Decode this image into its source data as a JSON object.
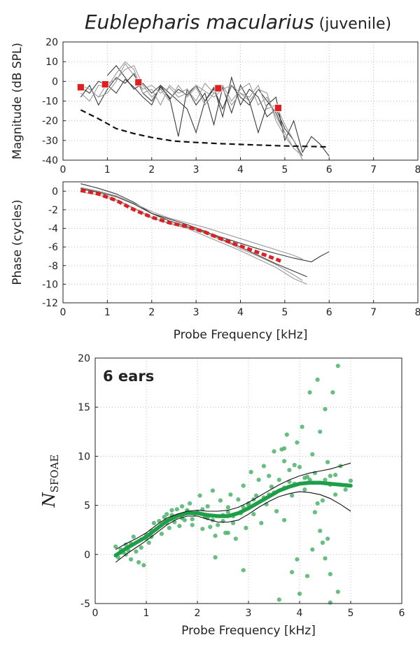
{
  "figure": {
    "title_species": "Eublepharis macularius",
    "title_suffix": " (juvenile)"
  },
  "colors": {
    "curve_dark": "#3a3a3a",
    "curve_light": "#9a9a9a",
    "phase_fit": "#e02020",
    "marker": "#e02020",
    "points": "#4db36b",
    "fit_line": "#1f9e49",
    "ci_line": "#111111",
    "grid": "#bdbdbd"
  },
  "chart_data": [
    {
      "id": "magnitude",
      "type": "line",
      "ylabel": "Magnitude (dB SPL)",
      "xlim": [
        0,
        8
      ],
      "ylim": [
        -40,
        20
      ],
      "xticks": [
        0,
        1,
        2,
        3,
        4,
        5,
        6,
        7,
        8
      ],
      "yticks": [
        -40,
        -30,
        -20,
        -10,
        0,
        10,
        20
      ],
      "grid": true,
      "series": [
        {
          "style": "dark",
          "x": [
            0.4,
            0.6,
            0.8,
            1.0,
            1.2,
            1.4,
            1.6,
            1.8,
            2.0,
            2.2,
            2.4,
            2.6,
            2.8,
            3.0,
            3.2,
            3.4,
            3.6,
            3.8,
            4.0,
            4.2,
            4.4,
            4.6,
            4.8,
            5.0,
            5.2,
            5.4,
            5.6,
            5.8,
            6.0
          ],
          "y": [
            -8,
            -2,
            -12,
            -4,
            2,
            -1,
            4,
            -6,
            -10,
            -3,
            -8,
            -28,
            -4,
            -12,
            -6,
            -22,
            -3,
            -16,
            -2,
            -10,
            -26,
            -12,
            -8,
            -30,
            -20,
            -36,
            -28,
            -32,
            -38
          ]
        },
        {
          "style": "dark",
          "x": [
            0.4,
            0.6,
            0.8,
            1.0,
            1.2,
            1.4,
            1.6,
            1.8,
            2.0,
            2.2,
            2.4,
            2.6,
            2.8,
            3.0,
            3.2,
            3.4,
            3.6,
            3.8,
            4.0,
            4.2,
            4.4,
            4.6,
            4.8,
            5.0,
            5.2,
            5.4
          ],
          "y": [
            -3,
            -6,
            0,
            -2,
            -6,
            1,
            -3,
            -8,
            -12,
            -2,
            -6,
            -10,
            -14,
            -26,
            -10,
            -3,
            -18,
            2,
            -12,
            -4,
            -8,
            -18,
            -14,
            -24,
            -30,
            -38
          ]
        },
        {
          "style": "dark",
          "x": [
            1.0,
            1.2,
            1.4,
            1.6,
            1.8,
            2.0,
            2.2,
            2.4,
            2.6,
            2.8,
            3.0,
            3.2,
            3.4,
            3.6,
            3.8,
            4.0,
            4.2,
            4.4,
            4.6,
            4.8,
            5.0
          ],
          "y": [
            3,
            8,
            2,
            -4,
            -1,
            -6,
            -2,
            -9,
            -4,
            -7,
            -2,
            -10,
            -4,
            -14,
            -2,
            -8,
            -12,
            -4,
            -10,
            -16,
            -26
          ]
        },
        {
          "style": "light",
          "x": [
            0.4,
            0.6,
            0.8,
            1.0,
            1.2,
            1.4,
            1.6,
            1.8,
            2.0,
            2.2,
            2.4,
            2.6,
            2.8,
            3.0,
            3.2,
            3.4,
            3.6,
            3.8,
            4.0,
            4.2,
            4.4,
            4.6,
            4.8,
            5.0,
            5.2,
            5.4
          ],
          "y": [
            -6,
            -10,
            -2,
            -3,
            4,
            10,
            6,
            -6,
            -4,
            -12,
            -2,
            -6,
            -4,
            -10,
            -1,
            -6,
            -4,
            -2,
            -6,
            -8,
            -2,
            -14,
            -12,
            -22,
            -30,
            -40
          ]
        },
        {
          "style": "light",
          "x": [
            0.4,
            0.6,
            0.8,
            1.0,
            1.2,
            1.4,
            1.6,
            1.8,
            2.0,
            2.2,
            2.4,
            2.6,
            2.8,
            3.0,
            3.2,
            3.4,
            3.6,
            3.8,
            4.0,
            4.2,
            4.4,
            4.6,
            4.8,
            5.0,
            5.2,
            5.4
          ],
          "y": [
            -2,
            -4,
            -8,
            -1,
            1,
            6,
            8,
            -2,
            -8,
            -4,
            -10,
            -2,
            -8,
            -3,
            -12,
            -6,
            -2,
            -10,
            -4,
            -1,
            -12,
            -8,
            -18,
            -26,
            -34,
            -38
          ]
        },
        {
          "style": "light",
          "x": [
            0.8,
            1.0,
            1.2,
            1.4,
            1.6,
            1.8,
            2.0,
            2.2,
            2.4,
            2.6,
            2.8,
            3.0,
            3.2,
            3.4,
            3.6,
            3.8,
            4.0,
            4.2,
            4.4,
            4.6,
            4.8,
            5.0,
            5.2
          ],
          "y": [
            -8,
            -6,
            0,
            9,
            3,
            -4,
            -2,
            -6,
            -3,
            -8,
            -6,
            -2,
            -5,
            -8,
            -4,
            -12,
            -6,
            -10,
            -4,
            -6,
            -20,
            -28,
            -34
          ]
        },
        {
          "style": "dashed",
          "x": [
            0.4,
            0.8,
            1.2,
            1.6,
            2.0,
            2.5,
            3.0,
            3.5,
            4.0,
            4.5,
            5.0,
            5.5,
            6.0
          ],
          "y": [
            -14.5,
            -19,
            -24,
            -26.5,
            -28.5,
            -30.3,
            -31.0,
            -31.6,
            -32.0,
            -32.4,
            -32.8,
            -33.0,
            -33.3
          ]
        }
      ],
      "markers": {
        "x": [
          0.4,
          0.95,
          1.7,
          3.5,
          4.85
        ],
        "y": [
          -3,
          -1.5,
          -0.5,
          -3.5,
          -13.5
        ]
      }
    },
    {
      "id": "phase",
      "type": "line",
      "xlabel": "Probe Frequency [kHz]",
      "ylabel": "Phase (cycles)",
      "xlim": [
        0,
        8
      ],
      "ylim": [
        -12,
        1
      ],
      "xticks": [
        0,
        1,
        2,
        3,
        4,
        5,
        6,
        7,
        8
      ],
      "yticks": [
        -12,
        -10,
        -8,
        -6,
        -4,
        -2,
        0
      ],
      "grid": true,
      "series": [
        {
          "style": "dark",
          "x": [
            0.4,
            0.8,
            1.2,
            1.6,
            2.0,
            2.4,
            2.8,
            3.2,
            3.6,
            4.0,
            4.4,
            4.8,
            5.2,
            5.6,
            5.8,
            6.0
          ],
          "y": [
            0.8,
            0.3,
            -0.3,
            -1.2,
            -2.4,
            -3.2,
            -3.8,
            -4.4,
            -5.0,
            -5.6,
            -6.2,
            -6.7,
            -7.2,
            -7.6,
            -7.0,
            -6.5
          ]
        },
        {
          "style": "dark",
          "x": [
            0.4,
            0.8,
            1.2,
            1.6,
            2.0,
            2.4,
            2.8,
            3.2,
            3.6,
            4.0,
            4.4,
            4.8,
            5.2,
            5.5
          ],
          "y": [
            0.3,
            -0.1,
            -0.6,
            -1.4,
            -2.4,
            -3.0,
            -3.6,
            -4.3,
            -5.2,
            -6.0,
            -6.9,
            -7.8,
            -8.6,
            -9.2
          ]
        },
        {
          "style": "light",
          "x": [
            0.4,
            0.8,
            1.2,
            1.6,
            2.0,
            2.4,
            2.8,
            3.2,
            3.6,
            4.0,
            4.4,
            4.8,
            5.2,
            5.5
          ],
          "y": [
            0.2,
            -0.2,
            -0.9,
            -1.8,
            -2.8,
            -3.5,
            -4.0,
            -4.8,
            -5.6,
            -6.4,
            -7.3,
            -8.2,
            -9.4,
            -10.0
          ]
        },
        {
          "style": "light",
          "x": [
            0.4,
            0.8,
            1.2,
            1.6,
            2.0,
            2.4,
            2.8,
            3.2,
            3.6,
            4.0,
            4.4,
            4.8,
            5.2,
            5.4
          ],
          "y": [
            -0.1,
            -0.4,
            -1.0,
            -1.9,
            -2.9,
            -3.4,
            -3.9,
            -4.5,
            -5.3,
            -6.2,
            -7.0,
            -7.9,
            -9.0,
            -9.6
          ]
        },
        {
          "style": "light",
          "x": [
            0.4,
            0.8,
            1.2,
            1.6,
            2.0,
            2.4,
            2.8,
            3.2,
            3.6,
            4.0,
            4.4,
            4.8,
            5.2,
            5.4
          ],
          "y": [
            0.4,
            0.0,
            -0.5,
            -1.3,
            -2.2,
            -2.9,
            -3.4,
            -3.9,
            -4.5,
            -5.1,
            -5.7,
            -6.3,
            -6.9,
            -7.3
          ]
        },
        {
          "style": "fit",
          "x": [
            0.4,
            0.8,
            1.2,
            1.6,
            2.0,
            2.4,
            2.8,
            3.2,
            3.6,
            4.0,
            4.4,
            4.8,
            4.95
          ],
          "y": [
            0.1,
            -0.3,
            -1.0,
            -2.0,
            -2.8,
            -3.4,
            -3.8,
            -4.4,
            -5.2,
            -5.9,
            -6.6,
            -7.3,
            -7.6
          ]
        }
      ]
    },
    {
      "id": "nsfoae",
      "type": "scatter",
      "annotation": "6 ears",
      "xlabel": "Probe Frequency [kHz]",
      "ylabel_main": "N",
      "ylabel_sub": "SFOAE",
      "xlim": [
        0,
        6
      ],
      "ylim": [
        -5,
        20
      ],
      "xticks": [
        0,
        1,
        2,
        3,
        4,
        5,
        6
      ],
      "yticks": [
        -5,
        0,
        5,
        10,
        15,
        20
      ],
      "grid": true,
      "fit": {
        "x": [
          0.4,
          0.6,
          0.8,
          1.0,
          1.2,
          1.4,
          1.6,
          1.8,
          2.0,
          2.2,
          2.4,
          2.6,
          2.8,
          3.0,
          3.2,
          3.4,
          3.6,
          3.8,
          4.0,
          4.2,
          4.4,
          4.6,
          4.8,
          5.0
        ],
        "y": [
          -0.1,
          0.6,
          1.2,
          1.8,
          2.6,
          3.4,
          3.9,
          4.2,
          4.2,
          4.0,
          3.9,
          3.9,
          4.2,
          4.7,
          5.3,
          5.9,
          6.5,
          6.9,
          7.2,
          7.3,
          7.3,
          7.2,
          7.1,
          7.0
        ]
      },
      "ci_upper": {
        "x": [
          0.4,
          0.6,
          0.8,
          1.0,
          1.2,
          1.4,
          1.6,
          1.8,
          2.0,
          2.2,
          2.4,
          2.6,
          2.8,
          3.0,
          3.2,
          3.4,
          3.6,
          3.8,
          4.0,
          4.2,
          4.4,
          4.6,
          4.8,
          5.0
        ],
        "y": [
          0.5,
          1.1,
          1.6,
          2.2,
          3.0,
          3.7,
          4.1,
          4.4,
          4.5,
          4.4,
          4.4,
          4.5,
          4.8,
          5.3,
          5.9,
          6.5,
          7.1,
          7.6,
          8.0,
          8.3,
          8.5,
          8.7,
          9.0,
          9.3
        ]
      },
      "ci_lower": {
        "x": [
          0.4,
          0.6,
          0.8,
          1.0,
          1.2,
          1.4,
          1.6,
          1.8,
          2.0,
          2.2,
          2.4,
          2.6,
          2.8,
          3.0,
          3.2,
          3.4,
          3.6,
          3.8,
          4.0,
          4.2,
          4.4,
          4.6,
          4.8,
          5.0
        ],
        "y": [
          -0.8,
          0.0,
          0.7,
          1.4,
          2.2,
          3.0,
          3.6,
          3.9,
          3.9,
          3.6,
          3.3,
          3.3,
          3.5,
          4.1,
          4.8,
          5.4,
          5.9,
          6.2,
          6.4,
          6.3,
          6.1,
          5.7,
          5.1,
          4.4
        ]
      },
      "points": {
        "x": [
          0.4,
          0.45,
          0.5,
          0.55,
          0.6,
          0.65,
          0.7,
          0.75,
          0.8,
          0.85,
          0.9,
          0.95,
          1.0,
          1.05,
          1.1,
          1.15,
          1.2,
          1.25,
          1.3,
          1.35,
          1.4,
          1.45,
          1.5,
          1.55,
          1.6,
          1.65,
          1.7,
          1.75,
          1.8,
          1.85,
          1.9,
          1.95,
          2.0,
          2.05,
          2.1,
          2.15,
          2.2,
          2.25,
          2.3,
          2.35,
          2.4,
          2.45,
          2.5,
          2.55,
          2.6,
          2.65,
          2.7,
          2.75,
          2.8,
          2.85,
          2.9,
          2.95,
          3.0,
          3.05,
          3.1,
          3.15,
          3.2,
          3.25,
          3.3,
          3.35,
          3.4,
          3.45,
          3.5,
          3.55,
          3.6,
          3.65,
          3.7,
          3.75,
          3.8,
          3.85,
          3.9,
          3.95,
          4.0,
          4.05,
          4.1,
          4.15,
          4.2,
          4.25,
          4.3,
          4.35,
          4.4,
          4.45,
          4.5,
          4.55,
          4.6,
          4.65,
          4.7,
          4.75,
          4.8,
          4.9,
          5.0,
          0.5,
          0.7,
          0.9,
          1.1,
          1.3,
          1.5,
          1.7,
          1.9,
          2.1,
          2.3,
          2.5,
          2.7,
          2.9,
          3.1,
          3.3,
          3.5,
          3.7,
          3.9,
          4.1,
          4.3,
          4.5,
          4.7,
          0.6,
          1.0,
          1.4,
          1.8,
          2.2,
          2.6,
          3.0,
          3.4,
          3.8,
          4.2,
          4.6,
          3.6,
          3.7,
          3.95,
          4.35,
          4.4,
          4.55,
          4.6,
          4.75,
          2.35,
          2.9,
          3.85,
          4.0,
          4.15,
          4.5,
          4.6,
          4.25,
          4.45,
          3.7,
          2.6
        ],
        "y": [
          0.8,
          -0.3,
          0.5,
          0.2,
          1.0,
          0.4,
          -0.5,
          1.8,
          0.3,
          -0.8,
          1.5,
          -1.1,
          2.0,
          1.2,
          1.8,
          3.2,
          2.6,
          3.4,
          2.1,
          3.8,
          4.1,
          2.7,
          4.5,
          3.3,
          4.6,
          2.9,
          4.9,
          3.5,
          4.4,
          5.2,
          3.0,
          4.1,
          4.3,
          6.0,
          2.6,
          3.8,
          4.9,
          2.8,
          6.5,
          1.9,
          3.0,
          5.5,
          3.4,
          2.2,
          4.8,
          6.1,
          3.9,
          1.6,
          5.6,
          4.2,
          7.0,
          2.7,
          5.0,
          8.4,
          4.1,
          6.0,
          7.6,
          3.2,
          9.0,
          5.1,
          8.0,
          6.9,
          10.5,
          4.4,
          7.6,
          10.7,
          3.5,
          12.2,
          8.6,
          6.0,
          9.1,
          11.4,
          8.9,
          13.0,
          6.6,
          7.9,
          16.5,
          10.2,
          4.3,
          17.8,
          12.5,
          5.5,
          14.8,
          9.4,
          8.0,
          16.5,
          6.1,
          19.2,
          9.0,
          6.6,
          7.5,
          0.2,
          1.1,
          0.7,
          2.4,
          3.0,
          4.0,
          3.7,
          3.6,
          4.6,
          3.5,
          4.0,
          3.2,
          4.8,
          5.6,
          5.8,
          6.3,
          6.8,
          7.2,
          7.8,
          8.3,
          7.6,
          8.1,
          0.0,
          1.6,
          3.2,
          4.5,
          3.7,
          4.3,
          5.2,
          6.1,
          7.4,
          7.6,
          7.1,
          -4.6,
          9.5,
          -0.5,
          5.2,
          2.4,
          1.6,
          -4.9,
          -3.8,
          -0.3,
          -1.6,
          -1.8,
          -4.0,
          -2.2,
          -0.4,
          -2.0,
          0.5,
          1.2,
          10.8,
          2.2
        ]
      }
    }
  ]
}
